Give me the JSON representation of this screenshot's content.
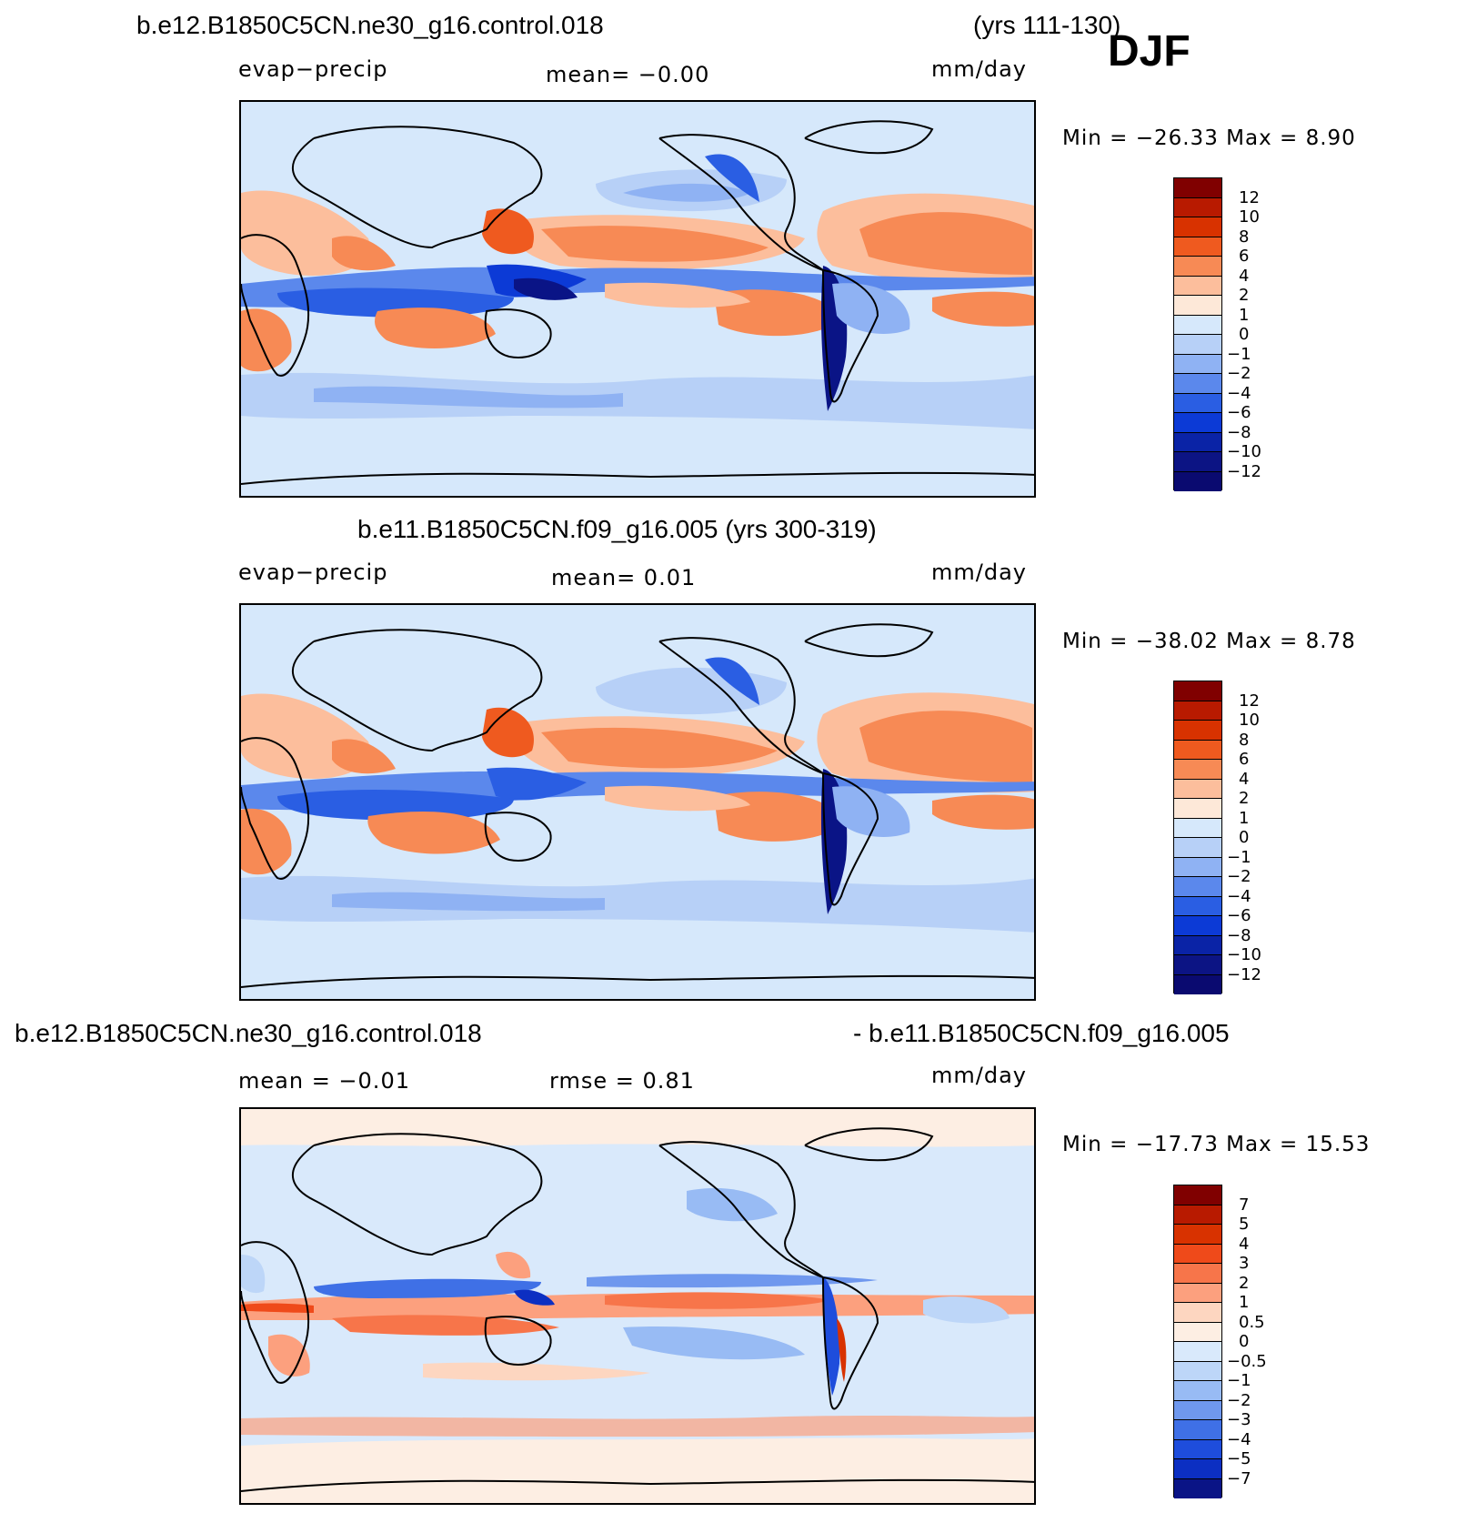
{
  "header": {
    "case1": "b.e12.B1850C5CN.ne30_g16.control.018",
    "years1": "(yrs 111-130)",
    "season": "DJF",
    "case2_title": "b.e11.B1850C5CN.f09_g16.005 (yrs 300-319)",
    "diff_left": "b.e12.B1850C5CN.ne30_g16.control.018",
    "diff_right": "- b.e11.B1850C5CN.f09_g16.005"
  },
  "panels": [
    {
      "variable": "evap-precip",
      "stat": "mean=   -0.00",
      "units": "mm/day",
      "minmax": "Min  =  -26.33  Max  =     8.90",
      "colorbar_labels": [
        "12",
        "10",
        "8",
        "6",
        "4",
        "2",
        "1",
        "0",
        "-1",
        "-2",
        "-4",
        "-6",
        "-8",
        "-10",
        "-12"
      ]
    },
    {
      "variable": "evap-precip",
      "stat": "mean=    0.01",
      "units": "mm/day",
      "minmax": "Min  =  -38.02  Max  =     8.78",
      "colorbar_labels": [
        "12",
        "10",
        "8",
        "6",
        "4",
        "2",
        "1",
        "0",
        "-1",
        "-2",
        "-4",
        "-6",
        "-8",
        "-10",
        "-12"
      ]
    },
    {
      "stat_mean": "mean  =    -0.01",
      "stat_rmse": "rmse  =     0.81",
      "units": "mm/day",
      "minmax": "Min  =  -17.73  Max  =    15.53",
      "colorbar_labels": [
        "7",
        "5",
        "4",
        "3",
        "2",
        "1",
        "0.5",
        "0",
        "-0.5",
        "-1",
        "-2",
        "-3",
        "-4",
        "-5",
        "-7"
      ]
    }
  ],
  "colors": {
    "abs_scale": [
      "#800000",
      "#b81a00",
      "#d83200",
      "#ef5a1f",
      "#f78a55",
      "#fcbe9c",
      "#fde8d8",
      "#d6e8fb",
      "#b7d0f7",
      "#8fb2f3",
      "#5b88ec",
      "#2a5ee3",
      "#0c3ad6",
      "#0a23a6",
      "#0c1484",
      "#0a0a70"
    ],
    "diff_scale": [
      "#800000",
      "#b81a00",
      "#d83200",
      "#ef4a1a",
      "#f7754a",
      "#fca07e",
      "#fdd6c0",
      "#fdeee3",
      "#d9e9fb",
      "#bdd6f8",
      "#98bbf4",
      "#6f98ee",
      "#3f70e6",
      "#1e4ddc",
      "#0c2fc2",
      "#0a1486"
    ],
    "land_outline": "#000000"
  }
}
